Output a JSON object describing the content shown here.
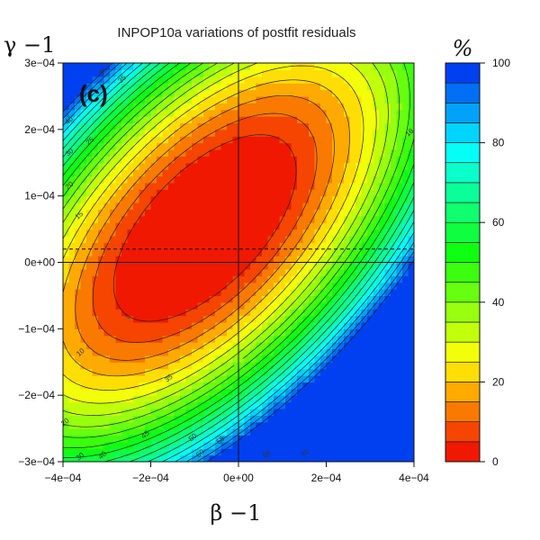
{
  "chart_data": {
    "type": "heatmap",
    "title": "INPOP10a variations of postfit residuals",
    "panel_label": "(c)",
    "xlabel": "β −1",
    "ylabel": "γ −1",
    "xlim": [
      -0.0004,
      0.0004
    ],
    "ylim": [
      -0.0003,
      0.0003
    ],
    "x_ticks": [
      -0.0004,
      -0.0002,
      0,
      0.0002,
      0.0004
    ],
    "x_tick_labels": [
      "−4e−04",
      "−2e−04",
      "0e+00",
      "2e−04",
      "4e−04"
    ],
    "y_ticks": [
      -0.0003,
      -0.0002,
      -0.0001,
      0,
      0.0001,
      0.0002,
      0.0003
    ],
    "y_tick_labels": [
      "−3e−04",
      "−2e−04",
      "−1e−04",
      "0e+00",
      "1e−04",
      "2e−04",
      "3e−04"
    ],
    "colorbar": {
      "label": "%",
      "range": [
        0,
        100
      ],
      "step": 5,
      "ticks": [
        0,
        20,
        40,
        60,
        80,
        100
      ],
      "tick_labels": [
        "0",
        "20",
        "40",
        "60",
        "80",
        "100"
      ]
    },
    "contour_labels": [
      {
        "text": "45",
        "x": -0.000306,
        "y": 0.000285
      },
      {
        "text": "35",
        "x": -0.000262,
        "y": 0.000273
      },
      {
        "text": "40",
        "x": -0.000383,
        "y": 0.000211
      },
      {
        "text": "30",
        "x": -0.000382,
        "y": 0.000163
      },
      {
        "text": "25",
        "x": -0.000335,
        "y": 0.00018
      },
      {
        "text": "20",
        "x": -0.000382,
        "y": 0.000113
      },
      {
        "text": "15",
        "x": -0.00036,
        "y": 6.8e-05
      },
      {
        "text": "16",
        "x": 0.000393,
        "y": 0.000193
      },
      {
        "text": "5",
        "x": -0.000249,
        "y": -8.4e-05
      },
      {
        "text": "10",
        "x": -0.000357,
        "y": -0.000138
      },
      {
        "text": "35",
        "x": -0.000156,
        "y": -0.000177
      },
      {
        "text": "20",
        "x": -0.000392,
        "y": -0.000243
      },
      {
        "text": "30",
        "x": -0.000358,
        "y": -0.000295
      },
      {
        "text": "40",
        "x": -0.000307,
        "y": -0.000293
      },
      {
        "text": "45",
        "x": -0.000209,
        "y": -0.000262
      },
      {
        "text": "50",
        "x": -0.000101,
        "y": -0.000266
      },
      {
        "text": "55",
        "x": -3.8e-05,
        "y": -0.00027
      },
      {
        "text": "60",
        "x": -8.4e-05,
        "y": -0.00029
      },
      {
        "text": "65",
        "x": 6.8e-05,
        "y": -0.000291
      },
      {
        "text": "70",
        "x": 0.000155,
        "y": -0.00029
      }
    ],
    "reference_lines": [
      {
        "orientation": "vertical",
        "value": 0,
        "style": "solid"
      },
      {
        "orientation": "horizontal",
        "value": 0,
        "style": "solid"
      },
      {
        "orientation": "horizontal",
        "value": 2e-05,
        "style": "dashed"
      }
    ],
    "grid": false
  }
}
